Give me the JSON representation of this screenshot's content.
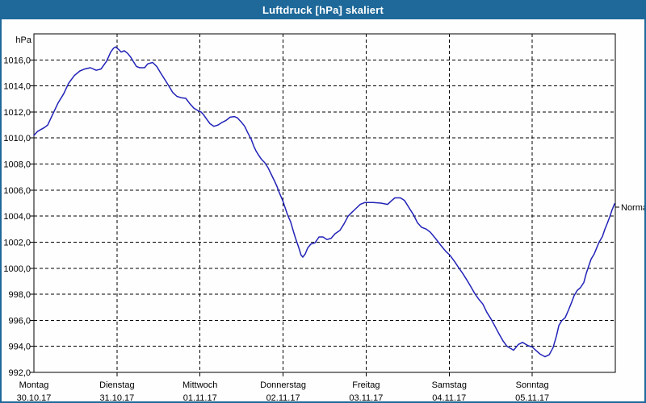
{
  "window": {
    "title": "Luftdruck [hPa] skaliert",
    "titlebar_color": "#1e699a",
    "border_color": "#1e699a"
  },
  "chart_data": {
    "type": "line",
    "title": "Luftdruck [hPa] skaliert",
    "ylabel": "hPa",
    "ylim": [
      992,
      1018
    ],
    "xlim_hours": [
      0,
      168
    ],
    "hours_per_day": 24,
    "grid": "dashed",
    "legend_position": "none",
    "line_color": "#2222b8",
    "y_ticks": [
      {
        "value": 992,
        "label": "992,0"
      },
      {
        "value": 994,
        "label": "994,0"
      },
      {
        "value": 996,
        "label": "996,0"
      },
      {
        "value": 998,
        "label": "998,0"
      },
      {
        "value": 1000,
        "label": "1000,0"
      },
      {
        "value": 1002,
        "label": "1002,0"
      },
      {
        "value": 1004,
        "label": "1004,0"
      },
      {
        "value": 1006,
        "label": "1006,0"
      },
      {
        "value": 1008,
        "label": "1008,0"
      },
      {
        "value": 1010,
        "label": "1010,0"
      },
      {
        "value": 1012,
        "label": "1012,0"
      },
      {
        "value": 1014,
        "label": "1014,0"
      },
      {
        "value": 1016,
        "label": "1016,0"
      }
    ],
    "x_days": [
      {
        "name": "Montag",
        "date": "30.10.17"
      },
      {
        "name": "Dienstag",
        "date": "31.10.17"
      },
      {
        "name": "Mittwoch",
        "date": "01.11.17"
      },
      {
        "name": "Donnerstag",
        "date": "02.11.17"
      },
      {
        "name": "Freitag",
        "date": "03.11.17"
      },
      {
        "name": "Samstag",
        "date": "04.11.17"
      },
      {
        "name": "Sonntag",
        "date": "05.11.17"
      }
    ],
    "annotation": {
      "label": "Normal",
      "value_hpa": 1004.7
    },
    "series": [
      {
        "name": "Luftdruck",
        "points": [
          [
            0,
            1010.2
          ],
          [
            1,
            1010.5
          ],
          [
            2,
            1010.65
          ],
          [
            3,
            1010.8
          ],
          [
            4,
            1011.0
          ],
          [
            5.4,
            1011.8
          ],
          [
            7,
            1012.7
          ],
          [
            8.6,
            1013.4
          ],
          [
            10,
            1014.2
          ],
          [
            11.7,
            1014.8
          ],
          [
            13.3,
            1015.15
          ],
          [
            14.7,
            1015.3
          ],
          [
            16.3,
            1015.4
          ],
          [
            18,
            1015.2
          ],
          [
            19.4,
            1015.3
          ],
          [
            21,
            1015.9
          ],
          [
            22.2,
            1016.6
          ],
          [
            23,
            1016.9
          ],
          [
            23.6,
            1017.0
          ],
          [
            24.5,
            1016.8
          ],
          [
            25.2,
            1016.6
          ],
          [
            26.1,
            1016.7
          ],
          [
            27.1,
            1016.5
          ],
          [
            28,
            1016.2
          ],
          [
            28.9,
            1015.8
          ],
          [
            29.6,
            1015.5
          ],
          [
            30.6,
            1015.4
          ],
          [
            32,
            1015.4
          ],
          [
            32.9,
            1015.7
          ],
          [
            34.3,
            1015.8
          ],
          [
            35.5,
            1015.5
          ],
          [
            36.6,
            1015.0
          ],
          [
            37.8,
            1014.5
          ],
          [
            39,
            1014.0
          ],
          [
            40.1,
            1013.5
          ],
          [
            41.3,
            1013.2
          ],
          [
            42.5,
            1013.1
          ],
          [
            43.9,
            1013.05
          ],
          [
            45,
            1012.65
          ],
          [
            46.2,
            1012.3
          ],
          [
            47.4,
            1012.1
          ],
          [
            48.3,
            1012.0
          ],
          [
            49,
            1011.8
          ],
          [
            49.9,
            1011.45
          ],
          [
            50.9,
            1011.1
          ],
          [
            52,
            1010.9
          ],
          [
            53.2,
            1011.0
          ],
          [
            54.4,
            1011.2
          ],
          [
            55.5,
            1011.35
          ],
          [
            56.7,
            1011.6
          ],
          [
            57.9,
            1011.65
          ],
          [
            58.8,
            1011.55
          ],
          [
            60,
            1011.2
          ],
          [
            60.9,
            1010.9
          ],
          [
            61.8,
            1010.4
          ],
          [
            62.8,
            1009.9
          ],
          [
            63.5,
            1009.4
          ],
          [
            64.2,
            1009.0
          ],
          [
            64.9,
            1008.7
          ],
          [
            65.8,
            1008.35
          ],
          [
            66.7,
            1008.1
          ],
          [
            67.7,
            1007.7
          ],
          [
            68.6,
            1007.2
          ],
          [
            69.5,
            1006.7
          ],
          [
            70.2,
            1006.3
          ],
          [
            70.9,
            1005.8
          ],
          [
            71.9,
            1005.2
          ],
          [
            72.6,
            1004.65
          ],
          [
            73.3,
            1004.1
          ],
          [
            74.2,
            1003.55
          ],
          [
            74.9,
            1002.9
          ],
          [
            75.6,
            1002.3
          ],
          [
            76.5,
            1001.6
          ],
          [
            77.2,
            1001.0
          ],
          [
            77.7,
            1000.85
          ],
          [
            78.4,
            1001.1
          ],
          [
            79.1,
            1001.55
          ],
          [
            80,
            1001.85
          ],
          [
            81.2,
            1001.95
          ],
          [
            82.4,
            1002.4
          ],
          [
            83.5,
            1002.4
          ],
          [
            84.7,
            1002.2
          ],
          [
            85.9,
            1002.3
          ],
          [
            87,
            1002.65
          ],
          [
            88.4,
            1002.9
          ],
          [
            89.6,
            1003.4
          ],
          [
            90.8,
            1004.0
          ],
          [
            91.9,
            1004.3
          ],
          [
            93.1,
            1004.6
          ],
          [
            94.3,
            1004.9
          ],
          [
            95.7,
            1005.05
          ],
          [
            98,
            1005.05
          ],
          [
            100.3,
            1005.0
          ],
          [
            102.2,
            1004.9
          ],
          [
            103.4,
            1005.2
          ],
          [
            104.3,
            1005.4
          ],
          [
            105.9,
            1005.4
          ],
          [
            107.1,
            1005.2
          ],
          [
            108.5,
            1004.6
          ],
          [
            109.7,
            1004.1
          ],
          [
            110.8,
            1003.5
          ],
          [
            112,
            1003.15
          ],
          [
            113.4,
            1003.0
          ],
          [
            114.6,
            1002.75
          ],
          [
            116,
            1002.3
          ],
          [
            117.6,
            1001.75
          ],
          [
            119,
            1001.3
          ],
          [
            120.2,
            1001.0
          ],
          [
            121.6,
            1000.5
          ],
          [
            122.7,
            1000.05
          ],
          [
            123.9,
            999.6
          ],
          [
            125.1,
            999.1
          ],
          [
            126.2,
            998.6
          ],
          [
            127.4,
            998.05
          ],
          [
            128.6,
            997.6
          ],
          [
            129.7,
            997.25
          ],
          [
            130.9,
            996.6
          ],
          [
            132.1,
            996.1
          ],
          [
            133.2,
            995.55
          ],
          [
            134.4,
            994.95
          ],
          [
            135.6,
            994.4
          ],
          [
            136.7,
            994.0
          ],
          [
            137.7,
            993.85
          ],
          [
            138.6,
            993.7
          ],
          [
            140,
            994.15
          ],
          [
            141.2,
            994.3
          ],
          [
            142.8,
            994.05
          ],
          [
            144,
            993.95
          ],
          [
            145.2,
            993.65
          ],
          [
            146.3,
            993.4
          ],
          [
            147.7,
            993.2
          ],
          [
            148.9,
            993.35
          ],
          [
            150,
            993.9
          ],
          [
            151,
            994.8
          ],
          [
            151.7,
            995.6
          ],
          [
            152.6,
            996.0
          ],
          [
            153.5,
            996.2
          ],
          [
            154.5,
            996.8
          ],
          [
            155.4,
            997.4
          ],
          [
            156.1,
            997.9
          ],
          [
            157,
            998.3
          ],
          [
            157.9,
            998.5
          ],
          [
            158.9,
            998.9
          ],
          [
            159.6,
            999.6
          ],
          [
            160.3,
            1000.15
          ],
          [
            161,
            1000.7
          ],
          [
            161.9,
            1001.1
          ],
          [
            162.6,
            1001.55
          ],
          [
            163.3,
            1002.0
          ],
          [
            164.3,
            1002.45
          ],
          [
            165,
            1003.0
          ],
          [
            165.7,
            1003.45
          ],
          [
            166.4,
            1003.95
          ],
          [
            167.1,
            1004.5
          ],
          [
            167.8,
            1004.95
          ]
        ]
      }
    ]
  }
}
